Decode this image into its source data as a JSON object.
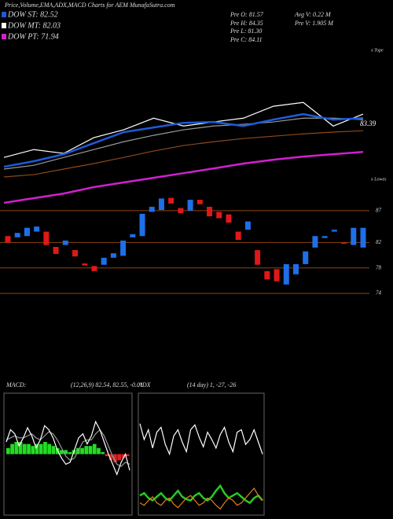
{
  "header": {
    "title": "Price,Volume,EMA,ADX,MACD Charts for AEM MunafaSutra.com"
  },
  "legend": [
    {
      "label": "DOW ST: 82.52",
      "color": "#1e5bd6"
    },
    {
      "label": "DOW MT: 82.03",
      "color": "#ffffff"
    },
    {
      "label": "DOW PT: 71.94",
      "color": "#d020d0"
    }
  ],
  "info": [
    "Pre  O: 81.57",
    "Pre  H: 84.35",
    "Pre  L: 81.30",
    "Pre  C: 84.11",
    "Avg  V: 0.22  M",
    "Pre  V: 1.905  M"
  ],
  "chart_data": [
    {
      "type": "line",
      "ylim": [
        53.3,
        107.9
      ],
      "annotations": [
        "83.39",
        "x Tope",
        "x Lowes"
      ],
      "series": [
        {
          "color": "#8b4a1a",
          "values": [
            63.3,
            64.1,
            66.0,
            67.9,
            70.0,
            72.2,
            74.1,
            75.4,
            76.5,
            77.3,
            78.1,
            78.7,
            79.2
          ]
        },
        {
          "color": "#d020d0",
          "values": [
            54.4,
            56.0,
            57.6,
            59.8,
            61.4,
            63.0,
            64.6,
            66.2,
            67.9,
            69.2,
            70.3,
            71.1,
            71.9
          ]
        },
        {
          "color": "#9a9a9a",
          "values": [
            66.0,
            67.3,
            70.0,
            72.7,
            75.4,
            77.6,
            79.5,
            80.8,
            81.4,
            82.2,
            83.5,
            83.5,
            83.0
          ]
        },
        {
          "color": "#ffffff",
          "values": [
            70.0,
            72.7,
            71.4,
            76.8,
            79.5,
            83.5,
            80.8,
            82.2,
            83.5,
            87.6,
            88.9,
            80.8,
            84.9
          ]
        },
        {
          "color": "#1e5bd6",
          "values": [
            66.8,
            68.7,
            71.1,
            74.9,
            78.7,
            80.3,
            81.9,
            82.2,
            80.8,
            83.0,
            84.9,
            83.0,
            83.5
          ]
        }
      ]
    },
    {
      "type": "candlestick",
      "ylim": [
        73.4,
        89.2
      ],
      "yticks": [
        87,
        82,
        78,
        74
      ],
      "grid": true,
      "grid_color": "#8b4513",
      "up_color": "#1e6fe8",
      "down_color": "#e01818",
      "categories": [
        null,
        null,
        null,
        null,
        null,
        null,
        null,
        null,
        null,
        null,
        null,
        null,
        null,
        null,
        null,
        null,
        null,
        null,
        null,
        null,
        null,
        null,
        null,
        null,
        null,
        null,
        null,
        null,
        null,
        null,
        null,
        null,
        null,
        null,
        null,
        null,
        null,
        null
      ],
      "open": [
        83.0,
        82.8,
        83.0,
        83.7,
        83.7,
        81.3,
        81.6,
        80.8,
        78.7,
        78.3,
        78.5,
        79.6,
        79.9,
        82.8,
        83.0,
        86.8,
        87.1,
        89.0,
        87.4,
        87.0,
        88.7,
        87.6,
        86.8,
        86.4,
        83.7,
        84.0,
        80.8,
        77.5,
        77.8,
        75.4,
        77.0,
        78.6,
        81.2,
        82.7,
        83.7,
        82.0,
        81.6,
        81.2
      ],
      "close": [
        82.0,
        83.5,
        84.3,
        84.5,
        81.6,
        80.2,
        82.3,
        79.8,
        78.4,
        77.5,
        79.6,
        80.3,
        82.3,
        83.3,
        86.5,
        87.6,
        88.9,
        88.1,
        86.6,
        88.7,
        88.0,
        86.1,
        85.8,
        85.1,
        82.4,
        85.3,
        78.5,
        76.2,
        75.9,
        78.6,
        78.6,
        80.6,
        83.0,
        83.0,
        84.0,
        81.8,
        84.3,
        84.3
      ]
    },
    {
      "type": "macd",
      "title": "MACD:",
      "params": "(12,26,9) 82.54, 82.55, -0.01",
      "ylim": [
        -3,
        3
      ],
      "color": "#22dd22",
      "negative_color": "#e02020",
      "histogram": [
        0.3,
        0.5,
        0.6,
        0.6,
        0.5,
        0.5,
        0.4,
        0.5,
        0.5,
        0.6,
        0.5,
        0.4,
        0.3,
        0.2,
        0.2,
        0.1,
        0.2,
        0.3,
        0.3,
        0.4,
        0.4,
        0.5,
        0.3,
        0.1,
        -0.1,
        -0.3,
        -0.4,
        -0.3,
        -0.2,
        -0.1
      ],
      "series": [
        {
          "color": "#9a9a9a",
          "values": [
            0.7,
            0.8,
            0.9,
            0.8,
            0.8,
            0.9,
            1.0,
            0.8,
            0.7,
            0.9,
            1.1,
            1.0,
            0.7,
            0.3,
            -0.1,
            -0.3,
            -0.2,
            0.2,
            0.6,
            0.7,
            0.7,
            1.0,
            1.2,
            0.9,
            0.4,
            -0.1,
            -0.5,
            -0.6,
            -0.4,
            -0.5
          ]
        },
        {
          "color": "#ffffff",
          "values": [
            0.6,
            1.2,
            1.0,
            0.4,
            0.8,
            1.3,
            0.9,
            0.3,
            0.7,
            1.4,
            1.2,
            0.8,
            0.2,
            -0.2,
            -0.5,
            -0.4,
            0.2,
            0.8,
            1.0,
            0.5,
            0.9,
            1.6,
            1.2,
            0.6,
            0.0,
            -0.5,
            -1.0,
            -0.4,
            0.0,
            -0.8
          ]
        }
      ]
    },
    {
      "type": "line",
      "title": "ADX",
      "params": "(14 day) 1, -27, -26",
      "ylim": [
        0,
        100
      ],
      "series": [
        {
          "color": "#ffffff",
          "values": [
            75,
            62,
            70,
            55,
            68,
            72,
            58,
            50,
            65,
            70,
            60,
            52,
            70,
            74,
            64,
            56,
            68,
            62,
            55,
            66,
            72,
            60,
            52,
            68,
            70,
            58,
            62,
            70,
            60,
            50
          ]
        },
        {
          "color": "#22cc22",
          "values": [
            16,
            18,
            14,
            12,
            15,
            18,
            14,
            12,
            16,
            20,
            15,
            13,
            12,
            16,
            18,
            14,
            12,
            15,
            20,
            24,
            18,
            14,
            16,
            18,
            15,
            12,
            10,
            14,
            16,
            12
          ]
        },
        {
          "color": "#e08020",
          "values": [
            10,
            8,
            12,
            15,
            10,
            8,
            12,
            14,
            9,
            6,
            10,
            14,
            16,
            12,
            8,
            10,
            14,
            12,
            8,
            5,
            10,
            14,
            12,
            8,
            10,
            14,
            18,
            22,
            16,
            12
          ]
        }
      ]
    }
  ]
}
